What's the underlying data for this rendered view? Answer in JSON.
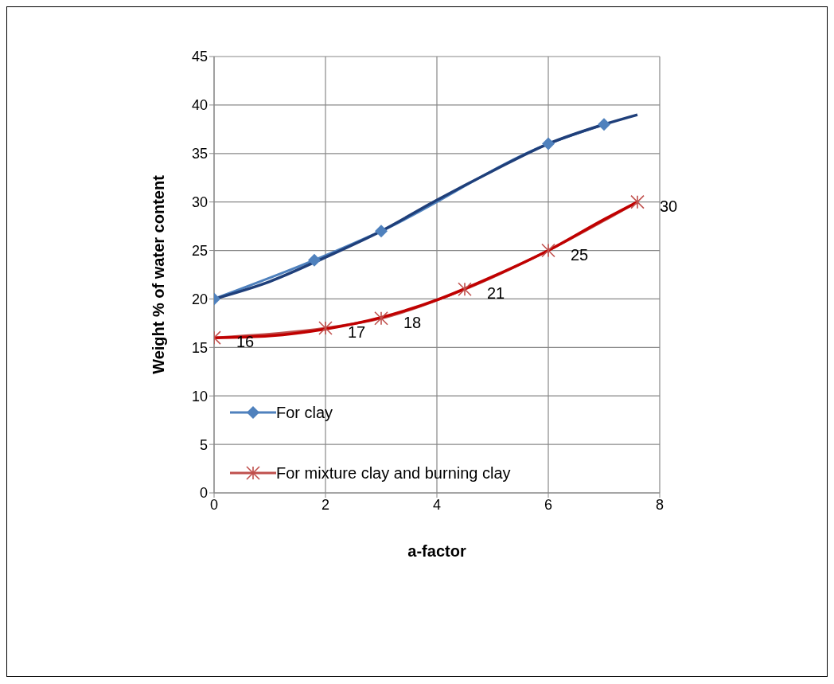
{
  "chart_data": {
    "type": "line",
    "xlabel": "a-factor",
    "ylabel": "Weight % of water content",
    "xlim": [
      0,
      8
    ],
    "xticks": [
      0,
      2,
      4,
      6,
      8
    ],
    "ylim": [
      0,
      45
    ],
    "yticks": [
      0,
      5,
      10,
      15,
      20,
      25,
      30,
      35,
      40,
      45
    ],
    "grid": true,
    "legend": "left",
    "line_style": "solid",
    "series": [
      {
        "name": "For clay",
        "color": "#4f81bd",
        "marker": "diamond",
        "x": [
          0,
          1.8,
          3,
          6,
          7
        ],
        "values": [
          20,
          24,
          27,
          36,
          38
        ]
      },
      {
        "name": "For mixture clay and burning clay",
        "color": "#c0504d",
        "marker": "cross",
        "x": [
          0,
          2,
          3,
          4.5,
          6,
          7.6
        ],
        "values": [
          16,
          17,
          18,
          21,
          25,
          30
        ],
        "value_labels": [
          "16",
          "17",
          "18",
          "21",
          "25",
          "30"
        ]
      },
      {
        "color": "#1f3f7a",
        "marker": "none",
        "x": [
          0,
          1,
          2,
          3,
          4,
          5,
          6,
          7,
          7.6
        ],
        "values": [
          20,
          21.8,
          24.3,
          27,
          30.2,
          33.2,
          36,
          38,
          39
        ]
      },
      {
        "color": "#c00000",
        "marker": "none",
        "x": [
          0,
          1,
          2,
          3,
          4,
          5,
          6,
          7,
          7.6
        ],
        "values": [
          16,
          16.2,
          16.9,
          18.1,
          19.9,
          22.3,
          25,
          28.2,
          30
        ]
      }
    ]
  }
}
